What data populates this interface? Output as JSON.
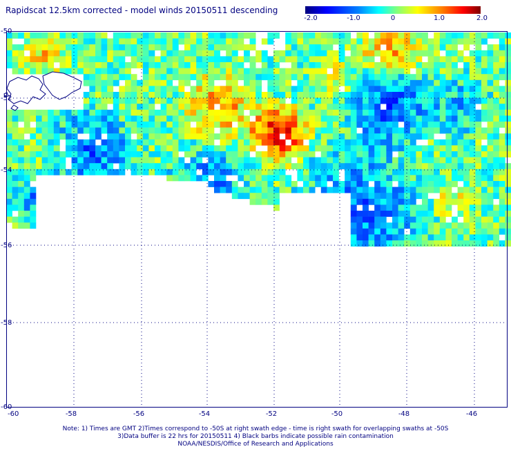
{
  "title": "Rapidscat 12.5km corrected - model winds 20150511 descending",
  "colorbar": {
    "labels": [
      "-2.0",
      "-1.0",
      "0",
      "1.0",
      "2.0"
    ],
    "min": -2.0,
    "max": 2.0
  },
  "map": {
    "lon_labels": [
      "-60",
      "-58",
      "-56",
      "-54",
      "-52",
      "-50",
      "-48",
      "-46"
    ],
    "lat_labels": [
      "-50",
      "-52",
      "-54",
      "-56",
      "-58",
      "-60"
    ],
    "grid_color": "#000080",
    "coast_color": "#000080"
  },
  "notes": {
    "line1": "Note: 1) Times are GMT 2)Times correspond to -50S at right swath edge - time is right swath for overlapping swaths at -50S",
    "line2": "3)Data buffer is 22 hrs for 20150511 4) Black barbs indicate possible rain contamination",
    "line3": "NOAA/NESDIS/Office of Research and Applications"
  }
}
